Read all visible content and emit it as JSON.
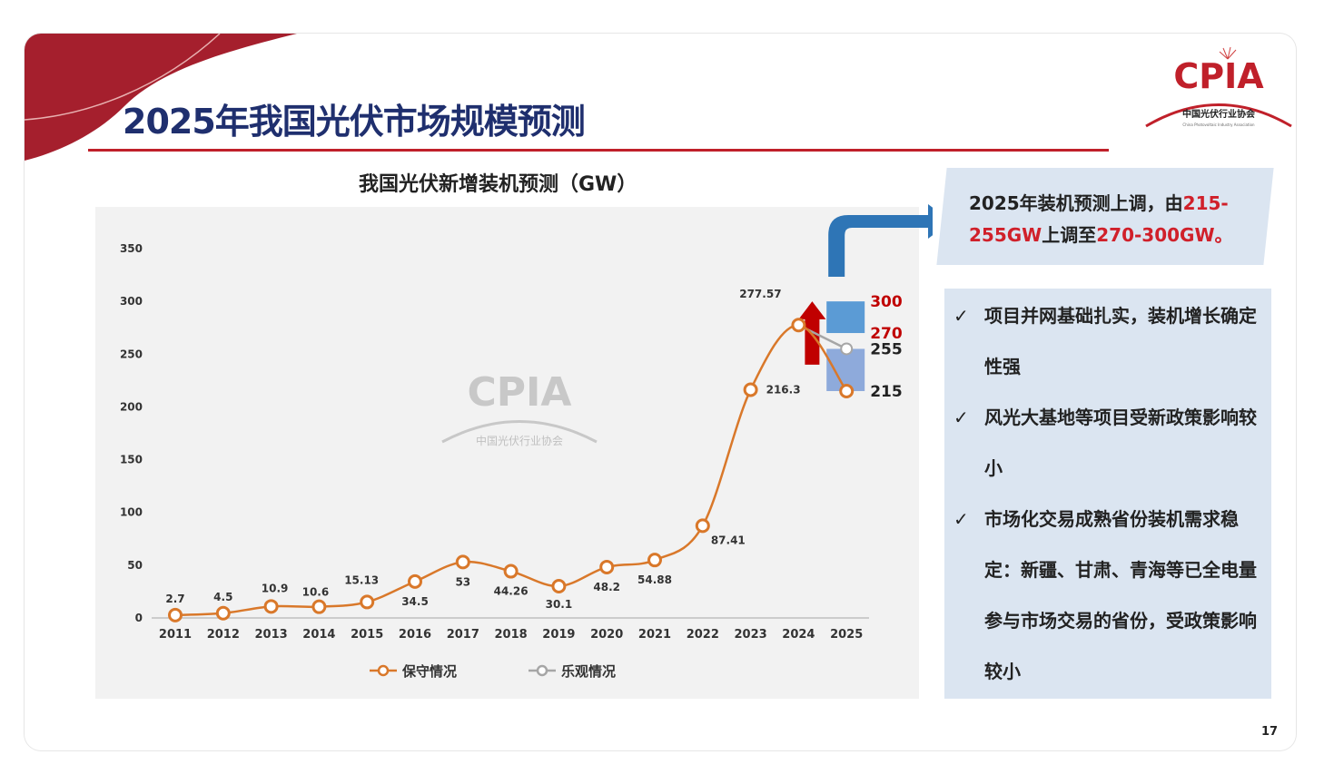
{
  "slide": {
    "title": "2025年我国光伏市场规模预测",
    "page_number": "17",
    "logo": {
      "text": "CPIA",
      "subtitle": "中国光伏行业协会",
      "english": "China Photovoltaic Industry Association"
    },
    "watermark": {
      "text": "CPIA",
      "subtitle": "中国光伏行业协会"
    }
  },
  "callout": {
    "parts": [
      "2025年装机预测上调，由",
      "215-255GW",
      "上调至",
      "270-300GW",
      "。"
    ]
  },
  "bullets": [
    {
      "icon": "check-icon",
      "mark": "✓",
      "text": "项目并网基础扎实，装机增长确定性强"
    },
    {
      "icon": "check-icon",
      "mark": "✓",
      "text": "风光大基地等项目受新政策影响较小"
    },
    {
      "icon": "check-icon",
      "mark": "✓",
      "text": "市场化交易成熟省份装机需求稳定：新疆、甘肃、青海等已全电量参与市场交易的省份，受政策影响较小"
    }
  ],
  "colors": {
    "conservative": "#d9782a",
    "optimistic": "#a6a6a6",
    "range_high": "#5b9bd5",
    "range_low": "#8eaadb",
    "accent_red": "#c00000",
    "arrow_blue": "#2e75b6"
  },
  "chart_data": {
    "type": "line",
    "title": "我国光伏新增装机预测（GW）",
    "categories": [
      "2011",
      "2012",
      "2013",
      "2014",
      "2015",
      "2016",
      "2017",
      "2018",
      "2019",
      "2020",
      "2021",
      "2022",
      "2023",
      "2024",
      "2025"
    ],
    "ylim": [
      0,
      350
    ],
    "yticks": [
      "0",
      "50",
      "100",
      "150",
      "200",
      "250",
      "300",
      "350"
    ],
    "grid": false,
    "legend": "bottom",
    "series": [
      {
        "name": "保守情况",
        "values": [
          2.7,
          4.5,
          10.9,
          10.6,
          15.13,
          34.5,
          53,
          44.26,
          30.1,
          48.2,
          54.88,
          87.41,
          216.3,
          277.57,
          215
        ],
        "labels": [
          "2.7",
          "4.5",
          "10.9",
          "10.6",
          "15.13",
          "34.5",
          "53",
          "44.26",
          "30.1",
          "48.2",
          "54.88",
          "87.41",
          "216.3",
          "277.57",
          ""
        ]
      },
      {
        "name": "乐观情况",
        "values": [
          null,
          null,
          null,
          null,
          null,
          null,
          null,
          null,
          null,
          null,
          null,
          null,
          null,
          277.57,
          255
        ]
      }
    ],
    "forecast_ranges": [
      {
        "low": 270,
        "high": 300,
        "low_label": "270",
        "high_label": "300"
      },
      {
        "low": 215,
        "high": 255,
        "low_label": "215",
        "high_label": "255"
      }
    ]
  }
}
